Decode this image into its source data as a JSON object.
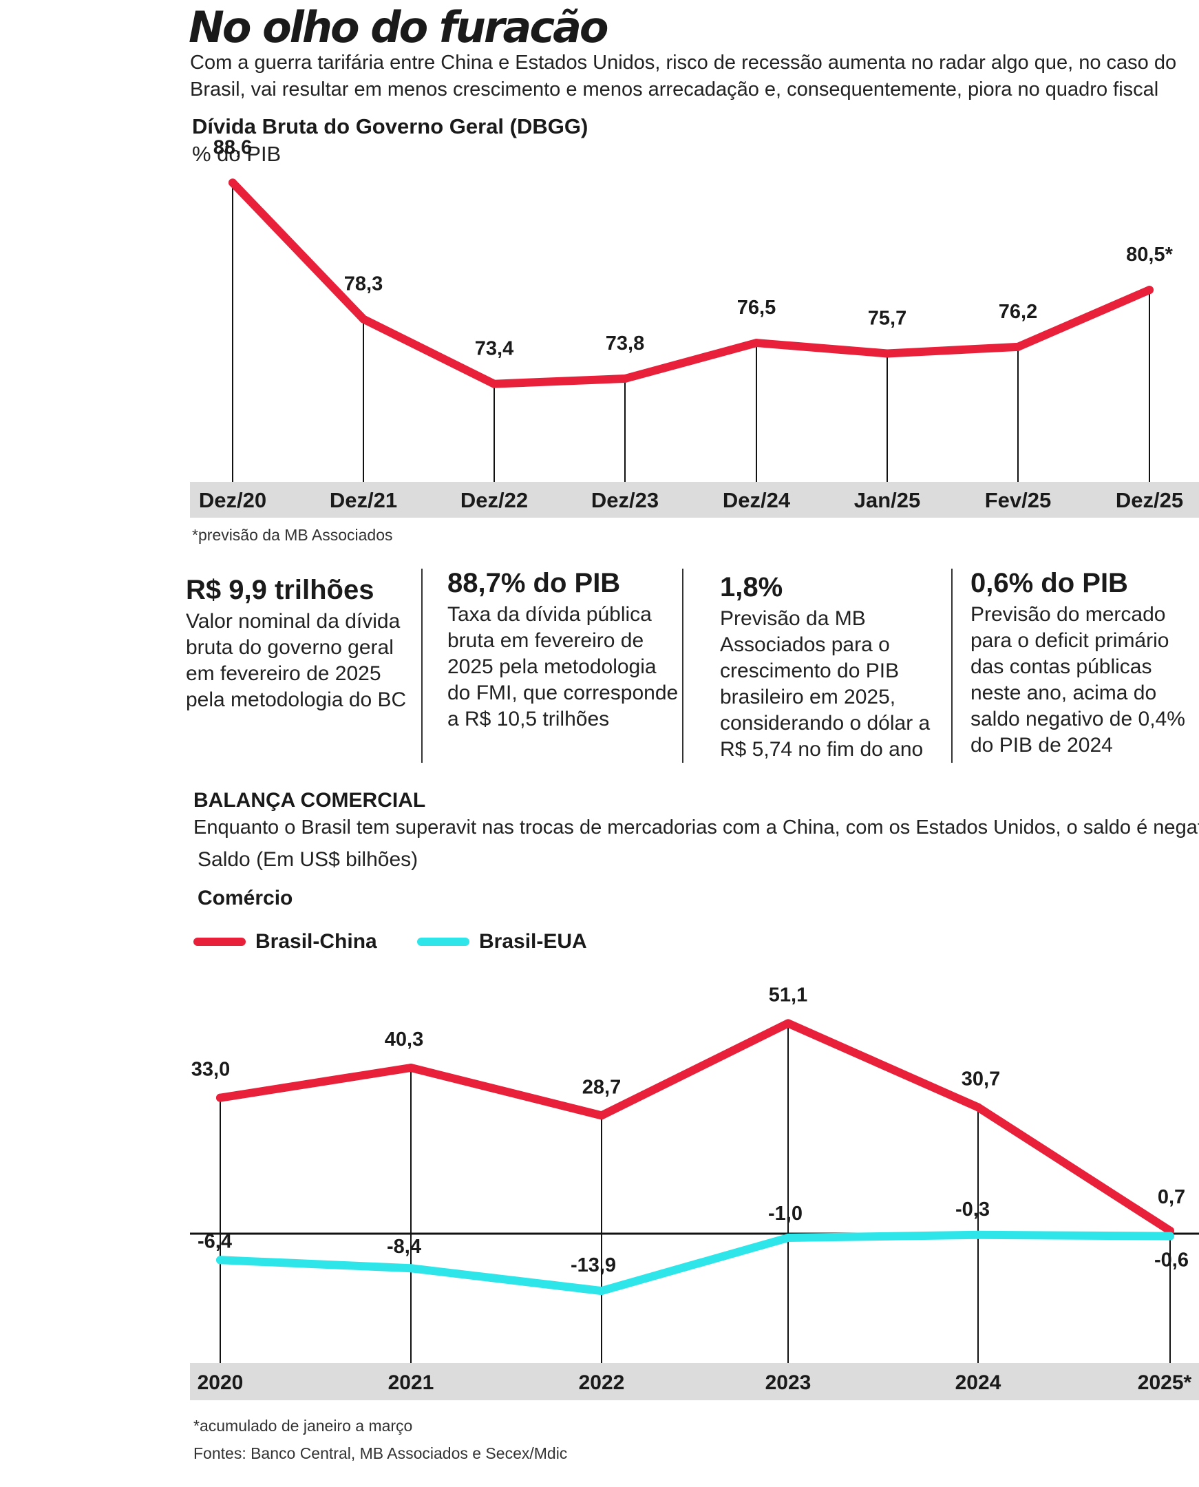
{
  "header": {
    "title": "No olho do furacão",
    "subtitle": "Com a guerra tarifária entre China e Estados Unidos, risco de recessão aumenta no radar algo que, no caso do Brasil, vai resultar em menos crescimento e menos arrecadação e, consequentemente, piora no quadro fiscal"
  },
  "debt_section": {
    "title": "Dívida Bruta do Governo Geral (DBGG)",
    "unit": "% do PIB",
    "note": "*previsão da MB Associados"
  },
  "kpis": [
    {
      "headline": "R$ 9,9 trilhões",
      "text": "Valor nominal da dívida bruta do governo geral em fevereiro de 2025 pela metodologia do BC"
    },
    {
      "headline": "88,7% do PIB",
      "text": "Taxa da dívida pública bruta em fevereiro de 2025 pela metodologia do FMI, que corresponde a R$ 10,5 trilhões"
    },
    {
      "headline": "1,8%",
      "text": "Previsão da MB Associados para o crescimento do PIB brasileiro em 2025, considerando o dólar a R$ 5,74 no fim do ano"
    },
    {
      "headline": "0,6% do PIB",
      "text": "Previsão do mercado para o deficit primário das contas públicas neste ano, acima do saldo negativo de 0,4% do PIB de 2024"
    }
  ],
  "trade_section": {
    "title": "BALANÇA COMERCIAL",
    "subtitle": "Enquanto o Brasil tem superavit nas trocas de mercadorias com a China, com os Estados Unidos, o saldo é negativo",
    "unit": "Saldo (Em US$ bilhões)",
    "group_label": "Comércio",
    "legend": [
      {
        "label": "Brasil-China",
        "color": "#e8203a"
      },
      {
        "label": "Brasil-EUA",
        "color": "#2ee6ea"
      }
    ],
    "note": "*acumulado de janeiro a março",
    "sources": "Fontes: Banco Central, MB Associados e Secex/Mdic"
  },
  "colors": {
    "red": "#e8203a",
    "cyan": "#2ee6ea",
    "band": "#dcdcdc",
    "text": "#1a1a1a"
  },
  "chart_data": [
    {
      "type": "line",
      "title": "Dívida Bruta do Governo Geral (DBGG)",
      "ylabel": "% do PIB",
      "categories": [
        "Dez/20",
        "Dez/21",
        "Dez/22",
        "Dez/23",
        "Dez/24",
        "Jan/25",
        "Fev/25",
        "Dez/25"
      ],
      "series": [
        {
          "name": "DBGG",
          "values": [
            88.6,
            78.3,
            73.4,
            73.8,
            76.5,
            75.7,
            76.2,
            80.5
          ],
          "labels": [
            "88,6",
            "78,3",
            "73,4",
            "73,8",
            "76,5",
            "75,7",
            "76,2",
            "80,5*"
          ]
        }
      ],
      "ylim": [
        66,
        92
      ]
    },
    {
      "type": "line",
      "title": "Comércio",
      "ylabel": "Saldo (Em US$ bilhões)",
      "categories": [
        "2020",
        "2021",
        "2022",
        "2023",
        "2024",
        "2025*"
      ],
      "series": [
        {
          "name": "Brasil-China",
          "values": [
            33.0,
            40.3,
            28.7,
            51.1,
            30.7,
            0.7
          ],
          "labels": [
            "33,0",
            "40,3",
            "28,7",
            "51,1",
            "30,7",
            "0,7"
          ]
        },
        {
          "name": "Brasil-EUA",
          "values": [
            -6.4,
            -8.4,
            -13.9,
            -1.0,
            -0.3,
            -0.6
          ],
          "labels": [
            "-6,4",
            "-8,4",
            "-13,9",
            "-1,0",
            "-0,3",
            "-0,6"
          ]
        }
      ],
      "ylim": [
        -30,
        60
      ]
    }
  ]
}
